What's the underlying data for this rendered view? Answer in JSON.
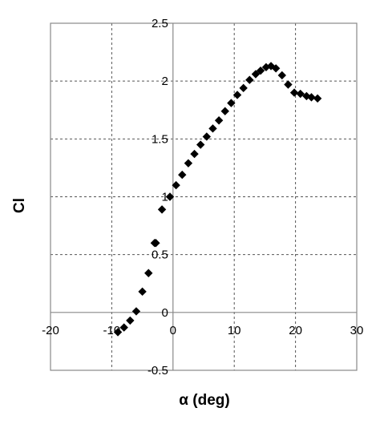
{
  "chart_data": {
    "type": "scatter",
    "title": "",
    "xlabel": "α (deg)",
    "ylabel": "Cl",
    "xlim": [
      -20,
      30
    ],
    "ylim": [
      -0.5,
      2.5
    ],
    "x_ticks": [
      -20,
      -10,
      0,
      10,
      20,
      30
    ],
    "x_tick_labels": [
      "-20",
      "-10",
      "0",
      "10",
      "20",
      "30"
    ],
    "y_ticks": [
      -0.5,
      0,
      0.5,
      1,
      1.5,
      2,
      2.5
    ],
    "y_tick_labels": [
      "-0.5",
      "0",
      "0.5",
      "1",
      "1.5",
      "2",
      "2.5"
    ],
    "grid": true,
    "grid_style": "dashed",
    "legend": "none",
    "marker": "diamond",
    "colors": {
      "marker": "#000000",
      "grid": "#555555",
      "axis": "#888888",
      "frame": "#888888"
    },
    "series": [
      {
        "x": [
          -9.0,
          -8.0,
          -7.0,
          -6.0,
          -5.0,
          -4.0,
          -3.0,
          -2.8,
          -1.8,
          -0.5,
          0.5,
          1.5,
          2.5,
          3.5,
          4.5,
          5.5,
          6.5,
          7.5,
          8.5,
          9.5,
          10.5,
          11.5,
          12.5,
          13.5,
          14.3,
          15.2,
          16.0,
          16.8,
          17.8,
          18.8,
          19.8,
          20.8,
          21.8,
          22.6,
          23.6
        ],
        "y": [
          -0.17,
          -0.13,
          -0.07,
          0.01,
          0.18,
          0.34,
          0.6,
          0.6,
          0.89,
          1.0,
          1.1,
          1.19,
          1.29,
          1.37,
          1.45,
          1.52,
          1.59,
          1.66,
          1.74,
          1.81,
          1.88,
          1.94,
          2.01,
          2.06,
          2.09,
          2.12,
          2.13,
          2.11,
          2.05,
          1.97,
          1.9,
          1.89,
          1.87,
          1.86,
          1.85
        ]
      }
    ]
  }
}
